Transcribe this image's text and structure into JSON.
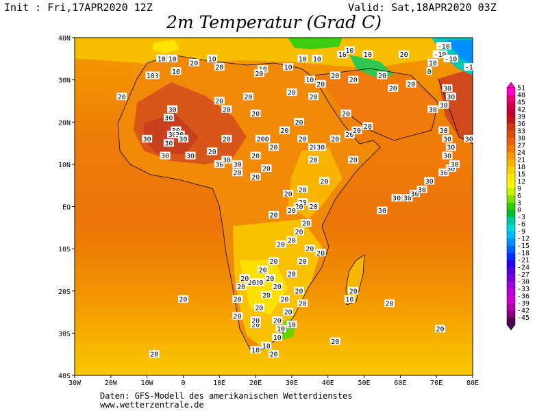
{
  "header": {
    "init": "Init : Fri,17APR2020 12Z",
    "valid": "Valid: Sat,18APR2020 03Z",
    "title": "2m Temperatur (Grad C)"
  },
  "axes": {
    "lat_labels": [
      "40N",
      "30N",
      "20N",
      "10N",
      "EQ",
      "10S",
      "20S",
      "30S",
      "40S"
    ],
    "lon_labels": [
      "30W",
      "20W",
      "10W",
      "0",
      "10E",
      "20E",
      "30E",
      "40E",
      "50E",
      "60E",
      "70E",
      "80E"
    ]
  },
  "colorbar": [
    {
      "label": "51",
      "color": "#ff00cc"
    },
    {
      "label": "48",
      "color": "#e6007a"
    },
    {
      "label": "45",
      "color": "#d0004a"
    },
    {
      "label": "42",
      "color": "#c0002a"
    },
    {
      "label": "39",
      "color": "#c01818"
    },
    {
      "label": "36",
      "color": "#cc3a10"
    },
    {
      "label": "33",
      "color": "#d85010"
    },
    {
      "label": "30",
      "color": "#e86010"
    },
    {
      "label": "27",
      "color": "#f07a08"
    },
    {
      "label": "24",
      "color": "#f59a00"
    },
    {
      "label": "21",
      "color": "#f8b400"
    },
    {
      "label": "18",
      "color": "#fad000"
    },
    {
      "label": "15",
      "color": "#fbe800"
    },
    {
      "label": "12",
      "color": "#fdf800"
    },
    {
      "label": "9",
      "color": "#c8f000"
    },
    {
      "label": "6",
      "color": "#80e000"
    },
    {
      "label": "3",
      "color": "#30cc00"
    },
    {
      "label": "0",
      "color": "#00bb30"
    },
    {
      "label": "-3",
      "color": "#00c8a0"
    },
    {
      "label": "-6",
      "color": "#00d8d8"
    },
    {
      "label": "-9",
      "color": "#00b8ff"
    },
    {
      "label": "-12",
      "color": "#0090ff"
    },
    {
      "label": "-15",
      "color": "#0060ff"
    },
    {
      "label": "-18",
      "color": "#0030ff"
    },
    {
      "label": "-21",
      "color": "#2000ee"
    },
    {
      "label": "-24",
      "color": "#5000e0"
    },
    {
      "label": "-27",
      "color": "#7800d8"
    },
    {
      "label": "-30",
      "color": "#9a00d8"
    },
    {
      "label": "-33",
      "color": "#b800d8"
    },
    {
      "label": "-36",
      "color": "#d000d0"
    },
    {
      "label": "-39",
      "color": "#b000a8"
    },
    {
      "label": "-42",
      "color": "#880080"
    },
    {
      "label": "-45",
      "color": "#500050"
    }
  ],
  "contour_labels": [
    {
      "t": "10",
      "lon": -6,
      "lat": 35
    },
    {
      "t": "10",
      "lon": -3,
      "lat": 35
    },
    {
      "t": "20",
      "lon": 3,
      "lat": 34
    },
    {
      "t": "10",
      "lon": 8,
      "lat": 35
    },
    {
      "t": "20",
      "lon": 10,
      "lat": 33
    },
    {
      "t": "10",
      "lon": -2,
      "lat": 32
    },
    {
      "t": "10",
      "lon": -8,
      "lat": 31
    },
    {
      "t": "10",
      "lon": -9,
      "lat": 31
    },
    {
      "t": "10",
      "lon": 22,
      "lat": 32.5
    },
    {
      "t": "10",
      "lon": 29,
      "lat": 33
    },
    {
      "t": "10",
      "lon": 33,
      "lat": 35
    },
    {
      "t": "10",
      "lon": 37,
      "lat": 35
    },
    {
      "t": "10",
      "lon": 44,
      "lat": 36
    },
    {
      "t": "10",
      "lon": 46,
      "lat": 37
    },
    {
      "t": "10",
      "lon": 51,
      "lat": 36
    },
    {
      "t": "20",
      "lon": 61,
      "lat": 36
    },
    {
      "t": "0",
      "lon": 68,
      "lat": 32
    },
    {
      "t": "10",
      "lon": 69,
      "lat": 34
    },
    {
      "t": "10",
      "lon": 35,
      "lat": 30
    },
    {
      "t": "20",
      "lon": 38,
      "lat": 29
    },
    {
      "t": "20",
      "lon": 42,
      "lat": 31
    },
    {
      "t": "20",
      "lon": 47,
      "lat": 30
    },
    {
      "t": "20",
      "lon": 55,
      "lat": 31
    },
    {
      "t": "20",
      "lon": 58,
      "lat": 28
    },
    {
      "t": "20",
      "lon": 63,
      "lat": 29
    },
    {
      "t": "30",
      "lon": 73,
      "lat": 28
    },
    {
      "t": "30",
      "lon": 74,
      "lat": 26
    },
    {
      "t": "30",
      "lon": 72,
      "lat": 24
    },
    {
      "t": "20",
      "lon": -17,
      "lat": 26
    },
    {
      "t": "20",
      "lon": 10,
      "lat": 25
    },
    {
      "t": "30",
      "lon": -3,
      "lat": 23
    },
    {
      "t": "30",
      "lon": -4,
      "lat": 21
    },
    {
      "t": "20",
      "lon": 12,
      "lat": 23
    },
    {
      "t": "20",
      "lon": 18,
      "lat": 26
    },
    {
      "t": "20",
      "lon": 20,
      "lat": 22
    },
    {
      "t": "20",
      "lon": 30,
      "lat": 27
    },
    {
      "t": "20",
      "lon": 36,
      "lat": 26
    },
    {
      "t": "20",
      "lon": 45,
      "lat": 22
    },
    {
      "t": "30",
      "lon": -2,
      "lat": 18
    },
    {
      "t": "30",
      "lon": -3,
      "lat": 17
    },
    {
      "t": "30",
      "lon": -1,
      "lat": 17
    },
    {
      "t": "30",
      "lon": -10,
      "lat": 16
    },
    {
      "t": "30",
      "lon": -5,
      "lat": 12
    },
    {
      "t": "30",
      "lon": -4,
      "lat": 15
    },
    {
      "t": "30",
      "lon": 0,
      "lat": 16
    },
    {
      "t": "30",
      "lon": 2,
      "lat": 12
    },
    {
      "t": "20",
      "lon": 8,
      "lat": 13
    },
    {
      "t": "20",
      "lon": 12,
      "lat": 16
    },
    {
      "t": "200",
      "lon": 22,
      "lat": 16
    },
    {
      "t": "20",
      "lon": 25,
      "lat": 14
    },
    {
      "t": "20",
      "lon": 20,
      "lat": 12
    },
    {
      "t": "20",
      "lon": 28,
      "lat": 18
    },
    {
      "t": "20",
      "lon": 32,
      "lat": 20
    },
    {
      "t": "20",
      "lon": 33,
      "lat": 16
    },
    {
      "t": "20",
      "lon": 36,
      "lat": 14
    },
    {
      "t": "30",
      "lon": 38,
      "lat": 14
    },
    {
      "t": "20",
      "lon": 42,
      "lat": 16
    },
    {
      "t": "20",
      "lon": 46,
      "lat": 17
    },
    {
      "t": "20",
      "lon": 48,
      "lat": 18
    },
    {
      "t": "20",
      "lon": 51,
      "lat": 19
    },
    {
      "t": "30",
      "lon": 10,
      "lat": 10
    },
    {
      "t": "30",
      "lon": 12,
      "lat": 11
    },
    {
      "t": "30",
      "lon": 15,
      "lat": 10
    },
    {
      "t": "20",
      "lon": 15,
      "lat": 8
    },
    {
      "t": "20",
      "lon": 20,
      "lat": 7
    },
    {
      "t": "20",
      "lon": 23,
      "lat": 9
    },
    {
      "t": "20",
      "lon": 36,
      "lat": 11
    },
    {
      "t": "20",
      "lon": 39,
      "lat": 6
    },
    {
      "t": "20",
      "lon": 47,
      "lat": 11
    },
    {
      "t": "20",
      "lon": 33,
      "lat": 4
    },
    {
      "t": "20",
      "lon": 29,
      "lat": 3
    },
    {
      "t": "20",
      "lon": 33,
      "lat": 1
    },
    {
      "t": "20",
      "lon": 32,
      "lat": 0
    },
    {
      "t": "20",
      "lon": 36,
      "lat": 0
    },
    {
      "t": "20",
      "lon": 30,
      "lat": -1
    },
    {
      "t": "20",
      "lon": 25,
      "lat": -2
    },
    {
      "t": "20",
      "lon": 34,
      "lat": -4
    },
    {
      "t": "20",
      "lon": 32,
      "lat": -6
    },
    {
      "t": "20",
      "lon": 30,
      "lat": -8
    },
    {
      "t": "20",
      "lon": 27,
      "lat": -9
    },
    {
      "t": "20",
      "lon": 35,
      "lat": -10
    },
    {
      "t": "20",
      "lon": 38,
      "lat": -11
    },
    {
      "t": "20",
      "lon": 33,
      "lat": -13
    },
    {
      "t": "20",
      "lon": 25,
      "lat": -13
    },
    {
      "t": "20",
      "lon": 22,
      "lat": -15
    },
    {
      "t": "20",
      "lon": 30,
      "lat": -16
    },
    {
      "t": "20",
      "lon": 24,
      "lat": -17
    },
    {
      "t": "20",
      "lon": 21,
      "lat": -18
    },
    {
      "t": "20",
      "lon": 19,
      "lat": -18
    },
    {
      "t": "20",
      "lon": 16,
      "lat": -19
    },
    {
      "t": "20",
      "lon": 17,
      "lat": -17
    },
    {
      "t": "20",
      "lon": 26,
      "lat": -19
    },
    {
      "t": "20",
      "lon": 23,
      "lat": -21
    },
    {
      "t": "20",
      "lon": 28,
      "lat": -22
    },
    {
      "t": "20",
      "lon": 32,
      "lat": -20
    },
    {
      "t": "20",
      "lon": 15,
      "lat": -22
    },
    {
      "t": "20",
      "lon": 21,
      "lat": -24
    },
    {
      "t": "20",
      "lon": 29,
      "lat": -25
    },
    {
      "t": "20",
      "lon": 33,
      "lat": -23
    },
    {
      "t": "20",
      "lon": 26,
      "lat": -27
    },
    {
      "t": "20",
      "lon": 20,
      "lat": -28
    },
    {
      "t": "20",
      "lon": 15,
      "lat": -26
    },
    {
      "t": "20",
      "lon": 20,
      "lat": -27
    },
    {
      "t": "10",
      "lon": 27,
      "lat": -29
    },
    {
      "t": "10",
      "lon": 30,
      "lat": -28
    },
    {
      "t": "10",
      "lon": 26,
      "lat": -31
    },
    {
      "t": "10",
      "lon": 23,
      "lat": -33
    },
    {
      "t": "10",
      "lon": 20,
      "lat": -34
    },
    {
      "t": "20",
      "lon": 25,
      "lat": -35
    },
    {
      "t": "20",
      "lon": 47,
      "lat": -20
    },
    {
      "t": "10",
      "lon": 46,
      "lat": -22
    },
    {
      "t": "20",
      "lon": 57,
      "lat": -23
    },
    {
      "t": "20",
      "lon": 42,
      "lat": -32
    },
    {
      "t": "20",
      "lon": 0,
      "lat": -22
    },
    {
      "t": "20",
      "lon": -8,
      "lat": -35
    },
    {
      "t": "20",
      "lon": 71,
      "lat": -29
    },
    {
      "t": "30",
      "lon": 55,
      "lat": -1
    },
    {
      "t": "30",
      "lon": 59,
      "lat": 2
    },
    {
      "t": "30",
      "lon": 62,
      "lat": 2
    },
    {
      "t": "30",
      "lon": 64,
      "lat": 3
    },
    {
      "t": "30",
      "lon": 66,
      "lat": 4
    },
    {
      "t": "30",
      "lon": 68,
      "lat": 6
    },
    {
      "t": "30",
      "lon": 72,
      "lat": 8
    },
    {
      "t": "30",
      "lon": 74,
      "lat": 9
    },
    {
      "t": "30",
      "lon": 75,
      "lat": 10
    },
    {
      "t": "30",
      "lon": 73,
      "lat": 12
    },
    {
      "t": "30",
      "lon": 74,
      "lat": 14
    },
    {
      "t": "30",
      "lon": 73,
      "lat": 16
    },
    {
      "t": "30",
      "lon": 72,
      "lat": 18
    },
    {
      "t": "30",
      "lon": 79,
      "lat": 16
    },
    {
      "t": "30",
      "lon": 69,
      "lat": 23
    },
    {
      "t": "20",
      "lon": 21,
      "lat": 31.5
    }
  ],
  "cold_labels": [
    {
      "t": "-10",
      "lon": 72,
      "lat": 38
    },
    {
      "t": "-10",
      "lon": 71,
      "lat": 36
    },
    {
      "t": "-10",
      "lon": 74,
      "lat": 35
    },
    {
      "t": "-1",
      "lon": 79,
      "lat": 33
    }
  ],
  "footer": {
    "line1": "Daten: GFS-Modell des amerikanischen Wetterdienstes",
    "line2": "www.wetterzentrale.de"
  }
}
